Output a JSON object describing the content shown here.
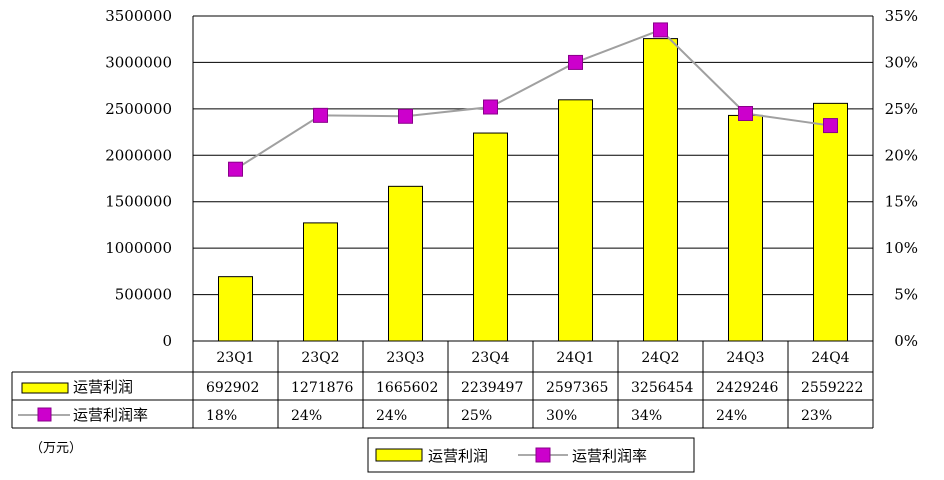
{
  "chart_data": {
    "type": "bar",
    "categories": [
      "23Q1",
      "23Q2",
      "23Q3",
      "23Q4",
      "24Q1",
      "24Q2",
      "24Q3",
      "24Q4"
    ],
    "series": [
      {
        "name": "运营利润",
        "type": "bar",
        "axis": "left",
        "color": "#FFFF00",
        "values": [
          692902,
          1271876,
          1665602,
          2239497,
          2597365,
          3256454,
          2429246,
          2559222
        ]
      },
      {
        "name": "运营利润率",
        "type": "line",
        "axis": "right",
        "color": "#CC00CC",
        "line_color": "#A0A0A0",
        "values": [
          18.5,
          24.3,
          24.2,
          25.2,
          30.0,
          33.5,
          24.5,
          23.2
        ]
      }
    ],
    "table_rows": [
      {
        "label": "运营利润",
        "cells": [
          "692902",
          "1271876",
          "1665602",
          "2239497",
          "2597365",
          "3256454",
          "2429246",
          "2559222"
        ]
      },
      {
        "label": "运营利润率",
        "cells": [
          "18%",
          "24%",
          "24%",
          "25%",
          "30%",
          "34%",
          "24%",
          "23%"
        ]
      }
    ],
    "y_left": {
      "range": [
        0,
        3500000
      ],
      "ticks": [
        0,
        500000,
        1000000,
        1500000,
        2000000,
        2500000,
        3000000,
        3500000
      ],
      "tick_labels": [
        "0",
        "500000",
        "1000000",
        "1500000",
        "2000000",
        "2500000",
        "3000000",
        "3500000"
      ]
    },
    "y_right": {
      "range": [
        0,
        35
      ],
      "ticks": [
        0,
        5,
        10,
        15,
        20,
        25,
        30,
        35
      ],
      "tick_labels": [
        "0%",
        "5%",
        "10%",
        "15%",
        "20%",
        "25%",
        "30%",
        "35%"
      ]
    },
    "unit_label": "（万元）",
    "grid": true,
    "legend_position": "bottom-center",
    "legend": [
      {
        "label": "运营利润",
        "kind": "bar"
      },
      {
        "label": "运营利润率",
        "kind": "line"
      }
    ]
  }
}
